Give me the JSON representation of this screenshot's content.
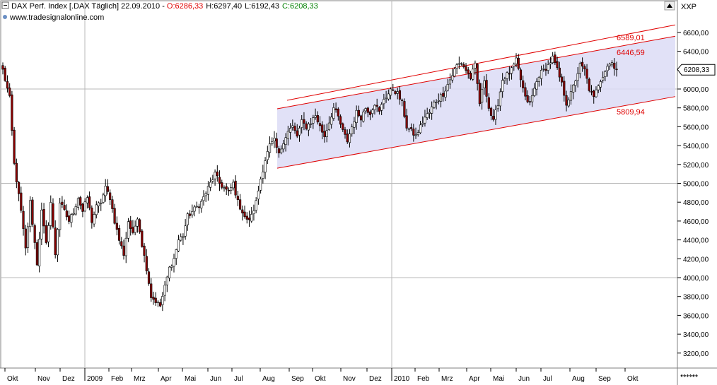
{
  "header": {
    "instrument": "DAX Perf. Index [.DAX  Täglich] 22.09.2010 - ",
    "open": "O:6286,33",
    "high": "H:6297,40",
    "low": "L:6192,43",
    "close": "C:6208,33",
    "source": "www.tradesignalonline.com",
    "axis_code": "XXP"
  },
  "chart_data": {
    "type": "candlestick",
    "title": "DAX Perf. Index [.DAX  Täglich] 22.09.2010",
    "y_range": [
      3050,
      6720
    ],
    "y_ticks": [
      3200,
      3400,
      3600,
      3800,
      4000,
      4200,
      4400,
      4600,
      4800,
      5000,
      5200,
      5400,
      5600,
      5800,
      6000,
      6200,
      6400,
      6600
    ],
    "y_tick_labels": [
      "3200,00",
      "3400,00",
      "3600,00",
      "3800,00",
      "4000,00",
      "4200,00",
      "4400,00",
      "4600,00",
      "4800,00",
      "5000,00",
      "5200,00",
      "5400,00",
      "5600,00",
      "5800,00",
      "6000,00",
      "6200,00",
      "6400,00",
      "6600,00"
    ],
    "y_grid": [
      4000,
      5000,
      6000
    ],
    "x_labels": [
      "Okt",
      "Nov",
      "Dez",
      "2009",
      "Feb",
      "Mrz",
      "Apr",
      "Mai",
      "Jun",
      "Jul",
      "Aug",
      "Sep",
      "Okt",
      "Nov",
      "Dez",
      "2010",
      "Feb",
      "Mrz",
      "Apr",
      "Mai",
      "Jun",
      "Jul",
      "Aug",
      "Sep",
      "Okt"
    ],
    "last_price": "6208,33",
    "last_value": 6208.33,
    "channel": {
      "upper_label": "6589,01",
      "upper_value": 6589.01,
      "middle_label": "6446,59",
      "middle_value": 6446.59,
      "lower_label": "5809,94",
      "lower_value": 5809.94,
      "upper_start_value": 5990,
      "middle_start_value": 5790,
      "lower_start_value": 5160
    },
    "anchors": [
      [
        0,
        6200
      ],
      [
        3,
        5900
      ],
      [
        5,
        5200
      ],
      [
        8,
        4700
      ],
      [
        10,
        4300
      ],
      [
        12,
        4800
      ],
      [
        15,
        4150
      ],
      [
        17,
        4700
      ],
      [
        19,
        4350
      ],
      [
        21,
        4800
      ],
      [
        23,
        4250
      ],
      [
        25,
        4800
      ],
      [
        27,
        4700
      ],
      [
        29,
        4600
      ],
      [
        31,
        4700
      ],
      [
        33,
        4850
      ],
      [
        35,
        4700
      ],
      [
        37,
        4850
      ],
      [
        39,
        4600
      ],
      [
        41,
        4750
      ],
      [
        43,
        4800
      ],
      [
        45,
        4950
      ],
      [
        47,
        4850
      ],
      [
        49,
        4600
      ],
      [
        51,
        4400
      ],
      [
        53,
        4250
      ],
      [
        55,
        4600
      ],
      [
        57,
        4450
      ],
      [
        59,
        4650
      ],
      [
        61,
        4350
      ],
      [
        63,
        4100
      ],
      [
        65,
        3800
      ],
      [
        67,
        3750
      ],
      [
        69,
        3700
      ],
      [
        71,
        3900
      ],
      [
        73,
        4100
      ],
      [
        75,
        4200
      ],
      [
        77,
        4400
      ],
      [
        79,
        4450
      ],
      [
        81,
        4650
      ],
      [
        83,
        4700
      ],
      [
        85,
        4750
      ],
      [
        87,
        4800
      ],
      [
        89,
        4900
      ],
      [
        91,
        5000
      ],
      [
        93,
        5100
      ],
      [
        95,
        5000
      ],
      [
        97,
        4950
      ],
      [
        99,
        4900
      ],
      [
        101,
        5000
      ],
      [
        103,
        4800
      ],
      [
        105,
        4700
      ],
      [
        107,
        4600
      ],
      [
        109,
        4650
      ],
      [
        111,
        4800
      ],
      [
        113,
        5050
      ],
      [
        115,
        5250
      ],
      [
        117,
        5400
      ],
      [
        119,
        5450
      ],
      [
        121,
        5300
      ],
      [
        123,
        5450
      ],
      [
        125,
        5550
      ],
      [
        127,
        5600
      ],
      [
        129,
        5500
      ],
      [
        131,
        5650
      ],
      [
        133,
        5600
      ],
      [
        135,
        5650
      ],
      [
        137,
        5720
      ],
      [
        139,
        5600
      ],
      [
        141,
        5500
      ],
      [
        143,
        5650
      ],
      [
        145,
        5800
      ],
      [
        147,
        5700
      ],
      [
        149,
        5550
      ],
      [
        151,
        5450
      ],
      [
        153,
        5600
      ],
      [
        155,
        5750
      ],
      [
        157,
        5700
      ],
      [
        159,
        5800
      ],
      [
        161,
        5750
      ],
      [
        163,
        5850
      ],
      [
        165,
        5750
      ],
      [
        167,
        5900
      ],
      [
        169,
        5950
      ],
      [
        171,
        6000
      ],
      [
        173,
        5950
      ],
      [
        175,
        5850
      ],
      [
        177,
        5600
      ],
      [
        179,
        5550
      ],
      [
        181,
        5500
      ],
      [
        183,
        5600
      ],
      [
        185,
        5700
      ],
      [
        187,
        5750
      ],
      [
        189,
        5850
      ],
      [
        191,
        5900
      ],
      [
        193,
        5950
      ],
      [
        195,
        6050
      ],
      [
        197,
        6150
      ],
      [
        199,
        6250
      ],
      [
        201,
        6280
      ],
      [
        203,
        6200
      ],
      [
        205,
        6120
      ],
      [
        207,
        6250
      ],
      [
        209,
        5850
      ],
      [
        211,
        6100
      ],
      [
        213,
        5800
      ],
      [
        215,
        5650
      ],
      [
        217,
        5850
      ],
      [
        219,
        6100
      ],
      [
        221,
        6150
      ],
      [
        223,
        6200
      ],
      [
        225,
        6300
      ],
      [
        227,
        6100
      ],
      [
        229,
        5900
      ],
      [
        231,
        5850
      ],
      [
        233,
        6000
      ],
      [
        235,
        6150
      ],
      [
        237,
        6200
      ],
      [
        239,
        6250
      ],
      [
        241,
        6330
      ],
      [
        243,
        6200
      ],
      [
        245,
        6050
      ],
      [
        247,
        5850
      ],
      [
        249,
        5950
      ],
      [
        251,
        6100
      ],
      [
        253,
        6250
      ],
      [
        255,
        6200
      ],
      [
        257,
        6000
      ],
      [
        259,
        5900
      ],
      [
        261,
        6050
      ],
      [
        263,
        6150
      ],
      [
        265,
        6250
      ],
      [
        267,
        6280
      ],
      [
        269,
        6208
      ]
    ]
  }
}
